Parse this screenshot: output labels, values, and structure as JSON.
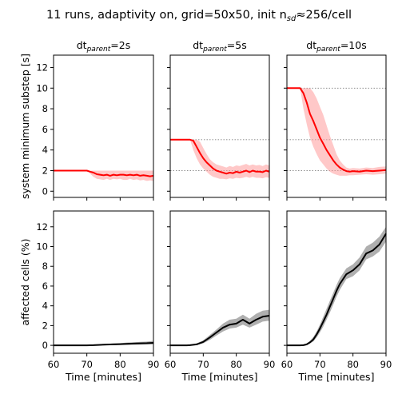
{
  "figure": {
    "title_main": "11 runs, adaptivity on, grid=50x50, init n",
    "title_sub": "sd",
    "title_tail": "≈256/cell"
  },
  "x_axis": {
    "label": "Time [minutes]",
    "range": [
      60,
      90
    ],
    "ticks": [
      60,
      70,
      80,
      90
    ],
    "tick_labels": [
      "60",
      "70",
      "80",
      "90"
    ]
  },
  "colors": {
    "top_line": "#ff0000",
    "top_band": "#ff9a9a",
    "bottom_line": "#000000",
    "bottom_band": "#a6a6a6",
    "ref_line": "#808080"
  },
  "chart_data": [
    {
      "id": "top-dt2",
      "type": "line",
      "title_prefix": "dt",
      "title_sub": "parent",
      "title_suffix": "=2s",
      "ylabel": "system minimum substep [s]",
      "ylim": [
        -0.6,
        13.2
      ],
      "yticks": [
        0,
        2,
        4,
        6,
        8,
        10,
        12
      ],
      "ytick_labels": [
        "0",
        "2",
        "4",
        "6",
        "8",
        "10",
        "12"
      ],
      "ref_lines": [],
      "x": [
        60,
        62,
        64,
        66,
        68,
        70,
        71,
        72,
        73,
        74,
        75,
        76,
        77,
        78,
        79,
        80,
        81,
        82,
        83,
        84,
        85,
        86,
        87,
        88,
        89,
        90
      ],
      "mean": [
        2,
        2,
        2,
        2,
        2,
        2,
        1.9,
        1.8,
        1.65,
        1.6,
        1.55,
        1.6,
        1.5,
        1.6,
        1.55,
        1.6,
        1.6,
        1.55,
        1.6,
        1.55,
        1.6,
        1.5,
        1.55,
        1.5,
        1.45,
        1.5
      ],
      "lower": [
        2,
        2,
        2,
        2,
        2,
        2,
        1.7,
        1.4,
        1.2,
        1.15,
        1.1,
        1.2,
        1.1,
        1.2,
        1.15,
        1.2,
        1.1,
        1.1,
        1.2,
        1.1,
        1.15,
        1.05,
        1.1,
        1.0,
        1.05,
        1.0
      ],
      "upper": [
        2,
        2,
        2,
        2,
        2,
        2,
        2,
        2,
        2,
        2,
        2,
        2,
        2,
        2,
        2,
        2,
        2,
        2,
        2,
        2,
        2,
        2,
        2,
        2,
        2,
        2
      ]
    },
    {
      "id": "top-dt5",
      "type": "line",
      "title_prefix": "dt",
      "title_sub": "parent",
      "title_suffix": "=5s",
      "ylabel": "",
      "ylim": [
        -0.6,
        13.2
      ],
      "yticks": [
        0,
        2,
        4,
        6,
        8,
        10,
        12
      ],
      "ytick_labels": [],
      "ref_lines": [
        5,
        2
      ],
      "x": [
        60,
        62,
        64,
        65,
        66,
        67,
        68,
        69,
        70,
        71,
        72,
        73,
        74,
        75,
        76,
        77,
        78,
        79,
        80,
        81,
        82,
        83,
        84,
        85,
        86,
        87,
        88,
        89,
        90
      ],
      "mean": [
        5,
        5,
        5,
        5,
        5,
        4.9,
        4.3,
        3.7,
        3.2,
        2.8,
        2.5,
        2.2,
        2.0,
        1.9,
        1.8,
        1.7,
        1.8,
        1.75,
        1.9,
        1.8,
        1.9,
        2.0,
        1.85,
        2.0,
        1.9,
        1.9,
        1.85,
        2.0,
        1.9
      ],
      "lower": [
        5,
        5,
        5,
        5,
        5,
        4.0,
        3.2,
        2.6,
        2.2,
        1.9,
        1.6,
        1.4,
        1.3,
        1.2,
        1.2,
        1.15,
        1.25,
        1.2,
        1.3,
        1.25,
        1.3,
        1.4,
        1.3,
        1.4,
        1.3,
        1.3,
        1.25,
        1.35,
        1.3
      ],
      "upper": [
        5,
        5,
        5,
        5,
        5,
        5,
        5,
        4.8,
        4.2,
        3.6,
        3.1,
        2.8,
        2.6,
        2.5,
        2.4,
        2.3,
        2.45,
        2.35,
        2.5,
        2.45,
        2.55,
        2.65,
        2.5,
        2.6,
        2.5,
        2.55,
        2.45,
        2.6,
        2.5
      ]
    },
    {
      "id": "top-dt10",
      "type": "line",
      "title_prefix": "dt",
      "title_sub": "parent",
      "title_suffix": "=10s",
      "ylabel": "",
      "ylim": [
        -0.6,
        13.2
      ],
      "yticks": [
        0,
        2,
        4,
        6,
        8,
        10,
        12
      ],
      "ytick_labels": [],
      "ref_lines": [
        10,
        5,
        2
      ],
      "x": [
        60,
        62,
        64,
        65,
        66,
        67,
        68,
        69,
        70,
        71,
        72,
        73,
        74,
        75,
        76,
        77,
        78,
        79,
        80,
        82,
        84,
        86,
        88,
        90
      ],
      "mean": [
        10,
        10,
        10,
        9.5,
        8.6,
        7.5,
        6.8,
        6.0,
        5.2,
        4.6,
        4.0,
        3.5,
        3.0,
        2.6,
        2.3,
        2.1,
        1.95,
        1.9,
        1.95,
        1.9,
        2.0,
        1.95,
        2.0,
        2.05
      ],
      "lower": [
        10,
        10,
        10,
        8.0,
        6.5,
        5.2,
        4.3,
        3.6,
        3.0,
        2.6,
        2.2,
        1.9,
        1.7,
        1.6,
        1.5,
        1.5,
        1.5,
        1.55,
        1.55,
        1.6,
        1.65,
        1.6,
        1.65,
        1.7
      ],
      "upper": [
        10,
        10,
        10,
        10,
        10,
        10,
        9.6,
        9.0,
        8.2,
        7.4,
        6.4,
        5.4,
        4.5,
        3.6,
        3.0,
        2.6,
        2.3,
        2.2,
        2.25,
        2.2,
        2.3,
        2.25,
        2.35,
        2.4
      ]
    },
    {
      "id": "bottom-dt2",
      "type": "line",
      "ylabel": "affected cells (%)",
      "ylim": [
        -0.8,
        13.6
      ],
      "yticks": [
        0,
        2,
        4,
        6,
        8,
        10,
        12
      ],
      "ytick_labels": [
        "0",
        "2",
        "4",
        "6",
        "8",
        "10",
        "12"
      ],
      "ref_lines": [],
      "x": [
        60,
        65,
        70,
        72,
        74,
        76,
        78,
        80,
        82,
        84,
        86,
        88,
        90
      ],
      "mean": [
        0,
        0,
        0,
        0.02,
        0.05,
        0.08,
        0.1,
        0.12,
        0.15,
        0.18,
        0.2,
        0.22,
        0.25
      ],
      "lower": [
        0,
        0,
        0,
        0,
        0,
        0.02,
        0.03,
        0.04,
        0.05,
        0.06,
        0.07,
        0.08,
        0.1
      ],
      "upper": [
        0,
        0,
        0,
        0.05,
        0.1,
        0.15,
        0.2,
        0.22,
        0.28,
        0.32,
        0.35,
        0.38,
        0.45
      ]
    },
    {
      "id": "bottom-dt5",
      "type": "line",
      "ylabel": "",
      "ylim": [
        -0.8,
        13.6
      ],
      "yticks": [
        0,
        2,
        4,
        6,
        8,
        10,
        12
      ],
      "ytick_labels": [],
      "ref_lines": [],
      "x": [
        60,
        65,
        66,
        68,
        70,
        72,
        74,
        76,
        78,
        80,
        82,
        84,
        86,
        88,
        90
      ],
      "mean": [
        0,
        0,
        0.02,
        0.1,
        0.35,
        0.8,
        1.3,
        1.8,
        2.1,
        2.2,
        2.6,
        2.2,
        2.6,
        2.9,
        3.0
      ],
      "lower": [
        0,
        0,
        0,
        0.05,
        0.2,
        0.55,
        1.0,
        1.4,
        1.7,
        1.8,
        2.1,
        1.8,
        2.1,
        2.4,
        2.5
      ],
      "upper": [
        0,
        0,
        0.05,
        0.2,
        0.5,
        1.05,
        1.6,
        2.2,
        2.6,
        2.7,
        3.1,
        2.7,
        3.2,
        3.5,
        3.6
      ]
    },
    {
      "id": "bottom-dt10",
      "type": "line",
      "ylabel": "",
      "ylim": [
        -0.8,
        13.6
      ],
      "yticks": [
        0,
        2,
        4,
        6,
        8,
        10,
        12
      ],
      "ytick_labels": [],
      "ref_lines": [],
      "x": [
        60,
        64,
        65,
        66,
        67,
        68,
        69,
        70,
        71,
        72,
        73,
        74,
        75,
        76,
        78,
        80,
        82,
        84,
        86,
        88,
        90
      ],
      "mean": [
        0,
        0,
        0.02,
        0.1,
        0.3,
        0.6,
        1.1,
        1.7,
        2.4,
        3.1,
        3.9,
        4.7,
        5.5,
        6.2,
        7.2,
        7.6,
        8.2,
        9.3,
        9.6,
        10.2,
        11.3
      ],
      "lower": [
        0,
        0,
        0,
        0.05,
        0.2,
        0.4,
        0.8,
        1.3,
        1.9,
        2.6,
        3.3,
        4.1,
        4.9,
        5.6,
        6.7,
        7.0,
        7.6,
        8.7,
        9.0,
        9.5,
        10.5
      ],
      "upper": [
        0,
        0,
        0.05,
        0.2,
        0.45,
        0.85,
        1.4,
        2.1,
        2.9,
        3.7,
        4.5,
        5.3,
        6.1,
        6.8,
        7.8,
        8.2,
        8.9,
        10.0,
        10.4,
        11.0,
        12.0
      ]
    }
  ]
}
